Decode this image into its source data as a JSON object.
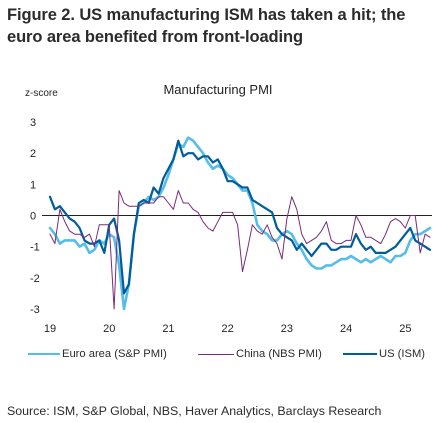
{
  "figure": {
    "title": "Figure 2. US manufacturing ISM has taken a hit; the euro area benefited from front-loading",
    "source": "Source: ISM, S&P Global, NBS, Haver Analytics, Barclays Research"
  },
  "chart_data": {
    "type": "line",
    "title": "Manufacturing PMI",
    "ylabel": "z-score",
    "xlabel": "",
    "ylim": [
      -3,
      3
    ],
    "yticks": [
      "3",
      "2",
      "1",
      "0",
      "-1",
      "-2",
      "-3"
    ],
    "xlim": [
      2019.0,
      2025.45
    ],
    "xticks": [
      {
        "x": 2019,
        "label": "19"
      },
      {
        "x": 2020,
        "label": "20"
      },
      {
        "x": 2021,
        "label": "21"
      },
      {
        "x": 2022,
        "label": "22"
      },
      {
        "x": 2023,
        "label": "23"
      },
      {
        "x": 2024,
        "label": "24"
      },
      {
        "x": 2025,
        "label": "25"
      }
    ],
    "zero_line": true,
    "grid": false,
    "legend_position": "bottom",
    "series": [
      {
        "name": "Euro area (S&P PMI)",
        "color": "#55bde9",
        "width": 2.6,
        "points": [
          [
            2019.0,
            -0.4
          ],
          [
            2019.083,
            -0.6
          ],
          [
            2019.167,
            -0.9
          ],
          [
            2019.25,
            -0.8
          ],
          [
            2019.333,
            -0.8
          ],
          [
            2019.417,
            -0.8
          ],
          [
            2019.5,
            -1.0
          ],
          [
            2019.583,
            -0.9
          ],
          [
            2019.667,
            -1.2
          ],
          [
            2019.75,
            -1.1
          ],
          [
            2019.833,
            -0.8
          ],
          [
            2019.917,
            -0.9
          ],
          [
            2020.0,
            -0.6
          ],
          [
            2020.083,
            -0.7
          ],
          [
            2020.167,
            -1.6
          ],
          [
            2020.25,
            -3.0
          ],
          [
            2020.333,
            -2.2
          ],
          [
            2020.417,
            -0.6
          ],
          [
            2020.5,
            0.3
          ],
          [
            2020.583,
            0.4
          ],
          [
            2020.667,
            0.6
          ],
          [
            2020.75,
            0.5
          ],
          [
            2020.833,
            0.6
          ],
          [
            2020.917,
            0.9
          ],
          [
            2021.0,
            1.3
          ],
          [
            2021.083,
            1.8
          ],
          [
            2021.167,
            2.3
          ],
          [
            2021.25,
            2.2
          ],
          [
            2021.333,
            2.5
          ],
          [
            2021.417,
            2.4
          ],
          [
            2021.5,
            2.2
          ],
          [
            2021.583,
            2.0
          ],
          [
            2021.667,
            1.7
          ],
          [
            2021.75,
            1.5
          ],
          [
            2021.833,
            1.6
          ],
          [
            2021.917,
            1.5
          ],
          [
            2022.0,
            1.3
          ],
          [
            2022.083,
            1.2
          ],
          [
            2022.167,
            1.0
          ],
          [
            2022.25,
            0.8
          ],
          [
            2022.333,
            0.8
          ],
          [
            2022.417,
            0.4
          ],
          [
            2022.5,
            -0.3
          ],
          [
            2022.583,
            -0.5
          ],
          [
            2022.667,
            -0.6
          ],
          [
            2022.75,
            -0.8
          ],
          [
            2022.833,
            -0.8
          ],
          [
            2022.917,
            -0.6
          ],
          [
            2023.0,
            -0.5
          ],
          [
            2023.083,
            -0.6
          ],
          [
            2023.167,
            -0.9
          ],
          [
            2023.25,
            -1.1
          ],
          [
            2023.333,
            -1.4
          ],
          [
            2023.417,
            -1.6
          ],
          [
            2023.5,
            -1.7
          ],
          [
            2023.583,
            -1.7
          ],
          [
            2023.667,
            -1.6
          ],
          [
            2023.75,
            -1.6
          ],
          [
            2023.833,
            -1.5
          ],
          [
            2023.917,
            -1.4
          ],
          [
            2024.0,
            -1.4
          ],
          [
            2024.083,
            -1.3
          ],
          [
            2024.167,
            -1.4
          ],
          [
            2024.25,
            -1.5
          ],
          [
            2024.333,
            -1.4
          ],
          [
            2024.417,
            -1.5
          ],
          [
            2024.5,
            -1.4
          ],
          [
            2024.583,
            -1.3
          ],
          [
            2024.667,
            -1.4
          ],
          [
            2024.75,
            -1.5
          ],
          [
            2024.833,
            -1.3
          ],
          [
            2024.917,
            -1.3
          ],
          [
            2025.0,
            -1.2
          ],
          [
            2025.083,
            -0.8
          ],
          [
            2025.167,
            -0.6
          ],
          [
            2025.25,
            -0.6
          ],
          [
            2025.333,
            -0.5
          ],
          [
            2025.417,
            -0.4
          ]
        ]
      },
      {
        "name": "China (NBS PMI)",
        "color": "#7a2a78",
        "width": 1.0,
        "points": [
          [
            2019.0,
            -0.6
          ],
          [
            2019.083,
            -0.9
          ],
          [
            2019.167,
            0.2
          ],
          [
            2019.25,
            -0.2
          ],
          [
            2019.333,
            -0.5
          ],
          [
            2019.417,
            -0.6
          ],
          [
            2019.5,
            -0.6
          ],
          [
            2019.583,
            -0.7
          ],
          [
            2019.667,
            -0.6
          ],
          [
            2019.75,
            -1.0
          ],
          [
            2019.833,
            -0.3
          ],
          [
            2019.917,
            -0.3
          ],
          [
            2020.0,
            -0.3
          ],
          [
            2020.083,
            -3.0
          ],
          [
            2020.167,
            0.8
          ],
          [
            2020.25,
            0.4
          ],
          [
            2020.333,
            0.3
          ],
          [
            2020.417,
            0.3
          ],
          [
            2020.5,
            0.3
          ],
          [
            2020.583,
            0.4
          ],
          [
            2020.667,
            0.4
          ],
          [
            2020.75,
            0.4
          ],
          [
            2020.833,
            0.6
          ],
          [
            2020.917,
            0.6
          ],
          [
            2021.0,
            0.4
          ],
          [
            2021.083,
            0.2
          ],
          [
            2021.167,
            0.8
          ],
          [
            2021.25,
            0.4
          ],
          [
            2021.333,
            0.4
          ],
          [
            2021.417,
            0.2
          ],
          [
            2021.5,
            0.1
          ],
          [
            2021.583,
            -0.2
          ],
          [
            2021.667,
            -0.4
          ],
          [
            2021.75,
            -0.5
          ],
          [
            2021.833,
            -0.2
          ],
          [
            2021.917,
            0.1
          ],
          [
            2022.0,
            0.1
          ],
          [
            2022.083,
            0.1
          ],
          [
            2022.167,
            -0.3
          ],
          [
            2022.25,
            -1.8
          ],
          [
            2022.333,
            -1.1
          ],
          [
            2022.417,
            -0.3
          ],
          [
            2022.5,
            -0.5
          ],
          [
            2022.583,
            -0.6
          ],
          [
            2022.667,
            -0.3
          ],
          [
            2022.75,
            -0.7
          ],
          [
            2022.833,
            -0.9
          ],
          [
            2022.917,
            -1.4
          ],
          [
            2023.0,
            -0.1
          ],
          [
            2023.083,
            0.6
          ],
          [
            2023.167,
            0.2
          ],
          [
            2023.25,
            -0.6
          ],
          [
            2023.333,
            -0.9
          ],
          [
            2023.417,
            -0.8
          ],
          [
            2023.5,
            -0.7
          ],
          [
            2023.583,
            -0.5
          ],
          [
            2023.667,
            -0.2
          ],
          [
            2023.75,
            -0.8
          ],
          [
            2023.833,
            -0.9
          ],
          [
            2023.917,
            -0.9
          ],
          [
            2024.0,
            -0.8
          ],
          [
            2024.083,
            -0.8
          ],
          [
            2024.167,
            0.0
          ],
          [
            2024.25,
            -0.3
          ],
          [
            2024.333,
            -0.7
          ],
          [
            2024.417,
            -0.7
          ],
          [
            2024.5,
            -0.8
          ],
          [
            2024.583,
            -0.9
          ],
          [
            2024.667,
            -0.6
          ],
          [
            2024.75,
            -0.2
          ],
          [
            2024.833,
            -0.1
          ],
          [
            2024.917,
            -0.2
          ],
          [
            2025.0,
            -0.4
          ],
          [
            2025.083,
            0.0
          ],
          [
            2025.167,
            0.0
          ],
          [
            2025.25,
            -1.2
          ],
          [
            2025.333,
            -0.6
          ],
          [
            2025.417,
            -0.7
          ]
        ]
      },
      {
        "name": "US (ISM)",
        "color": "#005c9a",
        "width": 2.2,
        "points": [
          [
            2019.0,
            0.6
          ],
          [
            2019.083,
            0.2
          ],
          [
            2019.167,
            0.3
          ],
          [
            2019.25,
            0.1
          ],
          [
            2019.333,
            -0.1
          ],
          [
            2019.417,
            -0.2
          ],
          [
            2019.5,
            -0.4
          ],
          [
            2019.583,
            -0.8
          ],
          [
            2019.667,
            -0.9
          ],
          [
            2019.75,
            -0.9
          ],
          [
            2019.833,
            -0.8
          ],
          [
            2019.917,
            -1.2
          ],
          [
            2020.0,
            -0.3
          ],
          [
            2020.083,
            -0.1
          ],
          [
            2020.167,
            -0.8
          ],
          [
            2020.25,
            -2.5
          ],
          [
            2020.333,
            -2.2
          ],
          [
            2020.417,
            -0.6
          ],
          [
            2020.5,
            0.4
          ],
          [
            2020.583,
            0.5
          ],
          [
            2020.667,
            0.4
          ],
          [
            2020.75,
            0.9
          ],
          [
            2020.833,
            0.7
          ],
          [
            2020.917,
            1.2
          ],
          [
            2021.0,
            1.5
          ],
          [
            2021.083,
            1.8
          ],
          [
            2021.167,
            2.4
          ],
          [
            2021.25,
            1.9
          ],
          [
            2021.333,
            2.0
          ],
          [
            2021.417,
            2.0
          ],
          [
            2021.5,
            1.8
          ],
          [
            2021.583,
            1.9
          ],
          [
            2021.667,
            1.9
          ],
          [
            2021.75,
            1.7
          ],
          [
            2021.833,
            1.8
          ],
          [
            2021.917,
            1.5
          ],
          [
            2022.0,
            1.1
          ],
          [
            2022.083,
            1.1
          ],
          [
            2022.167,
            1.0
          ],
          [
            2022.25,
            0.9
          ],
          [
            2022.333,
            0.9
          ],
          [
            2022.417,
            0.5
          ],
          [
            2022.5,
            0.4
          ],
          [
            2022.583,
            0.3
          ],
          [
            2022.667,
            0.2
          ],
          [
            2022.75,
            0.1
          ],
          [
            2022.833,
            -0.4
          ],
          [
            2022.917,
            -0.6
          ],
          [
            2023.0,
            -0.7
          ],
          [
            2023.083,
            -0.8
          ],
          [
            2023.167,
            -1.1
          ],
          [
            2023.25,
            -0.9
          ],
          [
            2023.333,
            -1.1
          ],
          [
            2023.417,
            -1.3
          ],
          [
            2023.5,
            -1.1
          ],
          [
            2023.583,
            -0.9
          ],
          [
            2023.667,
            -0.9
          ],
          [
            2023.75,
            -1.1
          ],
          [
            2023.833,
            -1.1
          ],
          [
            2023.917,
            -1.0
          ],
          [
            2024.0,
            -1.0
          ],
          [
            2024.083,
            -1.0
          ],
          [
            2024.167,
            -0.6
          ],
          [
            2024.25,
            -0.9
          ],
          [
            2024.333,
            -1.1
          ],
          [
            2024.417,
            -1.0
          ],
          [
            2024.5,
            -1.2
          ],
          [
            2024.583,
            -1.2
          ],
          [
            2024.667,
            -1.2
          ],
          [
            2024.75,
            -1.1
          ],
          [
            2024.833,
            -1.0
          ],
          [
            2024.917,
            -0.8
          ],
          [
            2025.0,
            -0.6
          ],
          [
            2025.083,
            -0.4
          ],
          [
            2025.167,
            -0.8
          ],
          [
            2025.25,
            -0.9
          ],
          [
            2025.333,
            -1.0
          ],
          [
            2025.417,
            -1.1
          ]
        ]
      }
    ]
  }
}
